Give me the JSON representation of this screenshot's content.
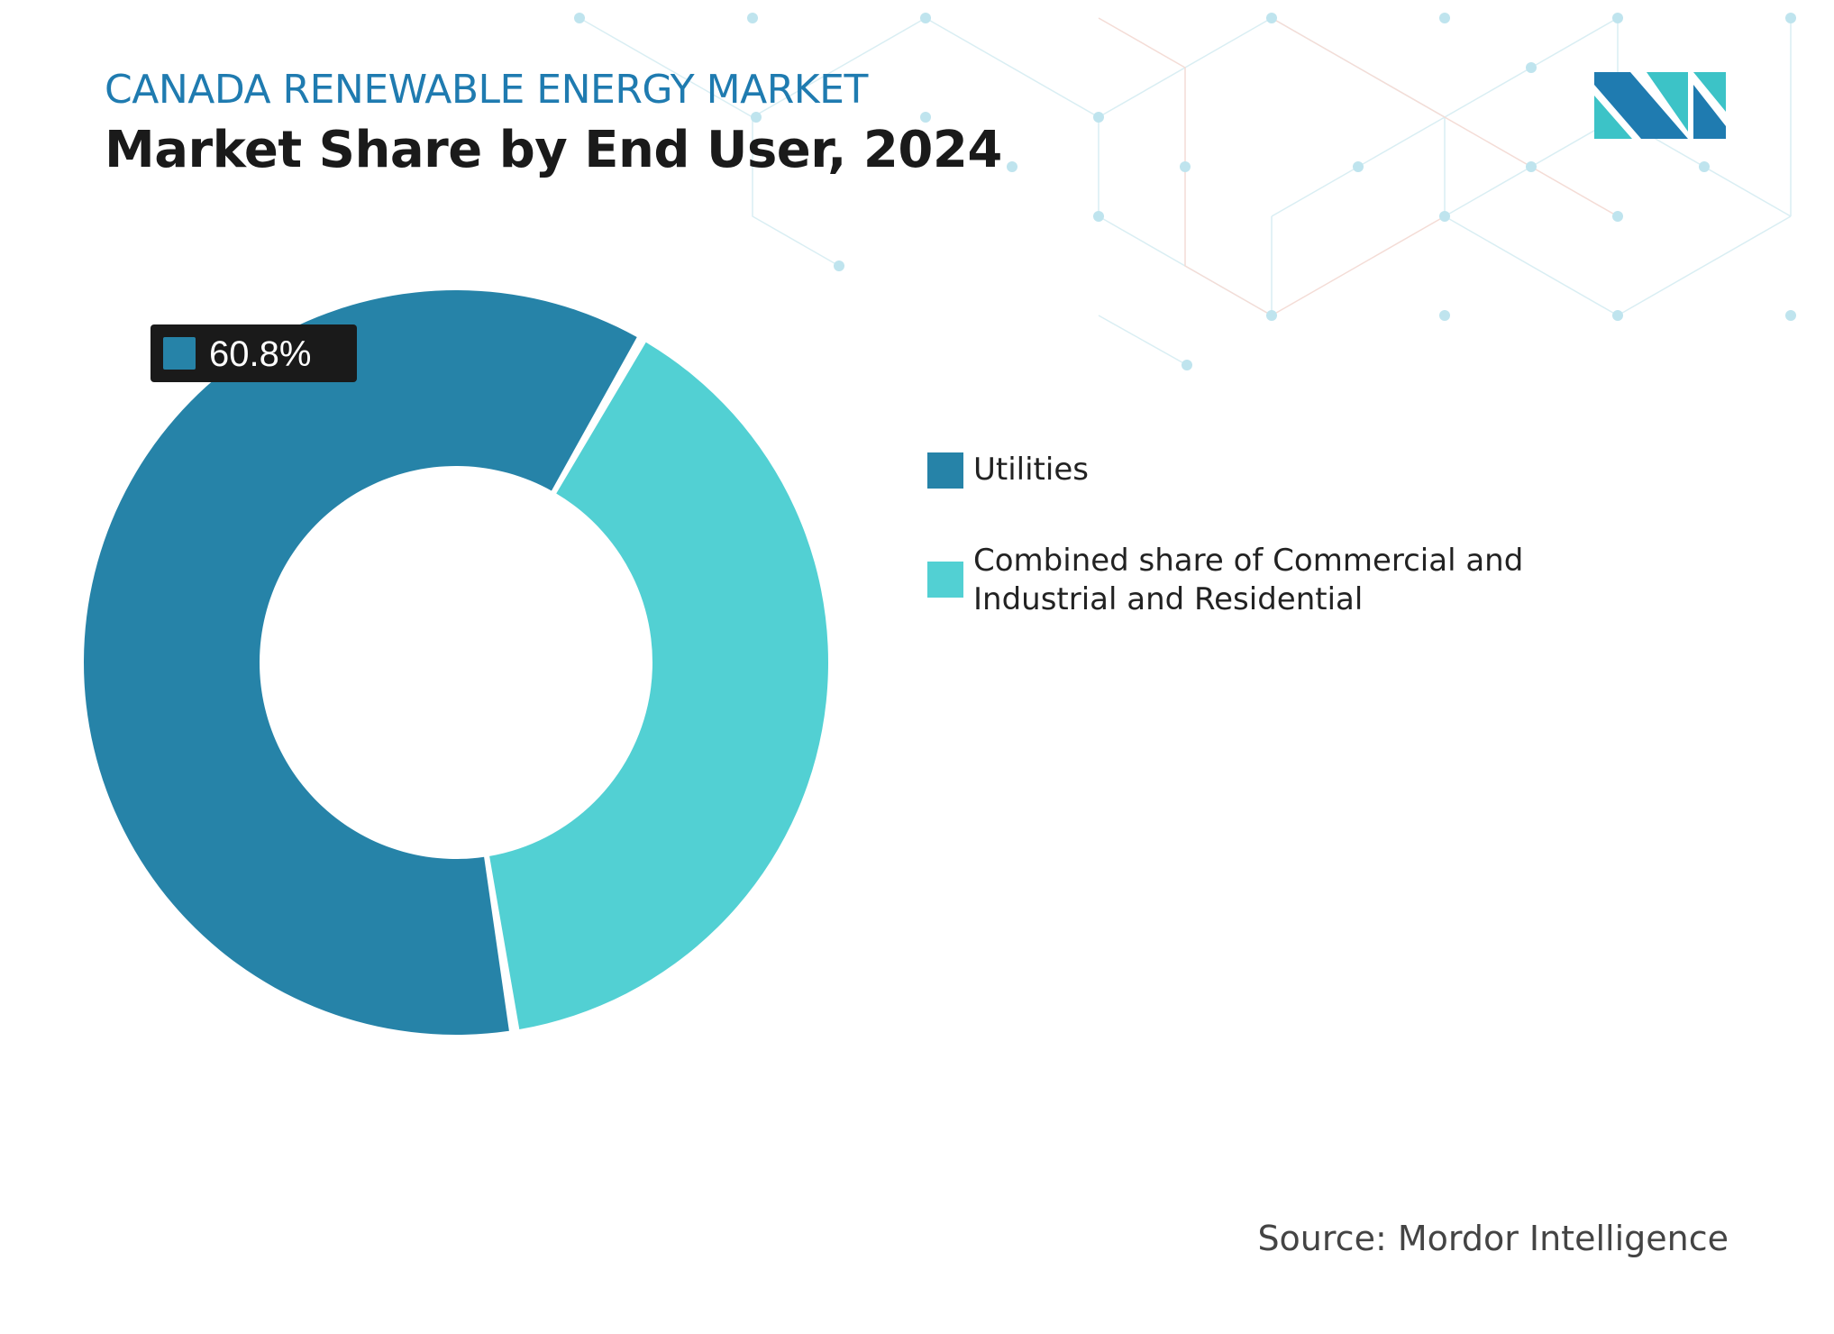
{
  "header": {
    "subtitle": "CANADA RENEWABLE ENERGY MARKET",
    "title": "Market Share by End User, 2024"
  },
  "chart_data": {
    "type": "pie",
    "variant": "donut",
    "categories": [
      "Utilities",
      "Combined share of Commercial and Industrial and Residential"
    ],
    "values": [
      60.8,
      39.2
    ],
    "colors": [
      "#2683a8",
      "#52d0d3"
    ],
    "data_labels": [
      {
        "category": "Utilities",
        "text": "60.8%"
      }
    ],
    "legend": "right"
  },
  "legend": {
    "items": [
      {
        "label": "Utilities",
        "color": "#2683a8"
      },
      {
        "label": "Combined share of Commercial and Industrial and Residential",
        "color": "#52d0d3"
      }
    ]
  },
  "footer": {
    "source": "Source: Mordor Intelligence"
  },
  "logo": {
    "text": "MI",
    "colors": [
      "#1f7bb0",
      "#3cc3c7"
    ]
  }
}
